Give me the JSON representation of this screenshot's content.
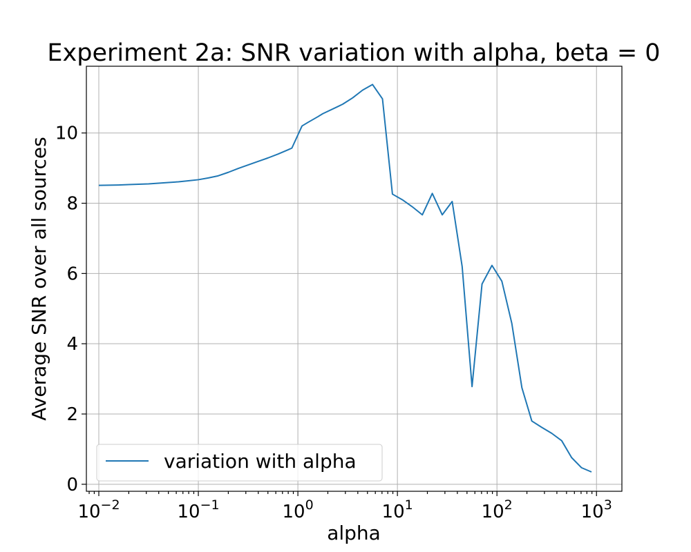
{
  "chart_data": {
    "type": "line",
    "title": "Experiment 2a: SNR variation with alpha, beta = 0",
    "xlabel": "alpha",
    "ylabel": "Average SNR over all sources",
    "xscale": "log",
    "xlim": [
      0.0075,
      1800
    ],
    "ylim": [
      -0.2,
      11.9
    ],
    "x_ticks": [
      0.01,
      0.1,
      1,
      10,
      100,
      1000
    ],
    "x_tick_labels": [
      {
        "base": "10",
        "exp": "−2"
      },
      {
        "base": "10",
        "exp": "−1"
      },
      {
        "base": "10",
        "exp": "0"
      },
      {
        "base": "10",
        "exp": "1"
      },
      {
        "base": "10",
        "exp": "2"
      },
      {
        "base": "10",
        "exp": "3"
      }
    ],
    "y_ticks": [
      0,
      2,
      4,
      6,
      8,
      10
    ],
    "y_tick_labels": [
      "0",
      "2",
      "4",
      "6",
      "8",
      "10"
    ],
    "grid": true,
    "legend_position": "lower-left",
    "series": [
      {
        "name": "variation with alpha",
        "color": "#1f77b4",
        "points": [
          [
            0.01,
            8.51
          ],
          [
            0.0126,
            8.515
          ],
          [
            0.0158,
            8.52
          ],
          [
            0.02,
            8.53
          ],
          [
            0.0251,
            8.54
          ],
          [
            0.0316,
            8.55
          ],
          [
            0.0398,
            8.57
          ],
          [
            0.0501,
            8.59
          ],
          [
            0.0631,
            8.61
          ],
          [
            0.0794,
            8.64
          ],
          [
            0.1,
            8.67
          ],
          [
            0.126,
            8.72
          ],
          [
            0.158,
            8.78
          ],
          [
            0.2,
            8.88
          ],
          [
            0.251,
            8.99
          ],
          [
            0.316,
            9.09
          ],
          [
            0.398,
            9.19
          ],
          [
            0.501,
            9.29
          ],
          [
            0.631,
            9.4
          ],
          [
            0.794,
            9.52
          ],
          [
            0.87,
            9.57
          ],
          [
            1.1,
            10.2
          ],
          [
            1.26,
            10.3
          ],
          [
            1.58,
            10.46
          ],
          [
            1.78,
            10.55
          ],
          [
            2.51,
            10.75
          ],
          [
            2.82,
            10.82
          ],
          [
            3.55,
            11.0
          ],
          [
            4.47,
            11.22
          ],
          [
            5.62,
            11.38
          ],
          [
            7.08,
            10.97
          ],
          [
            8.91,
            8.26
          ],
          [
            11.2,
            8.1
          ],
          [
            14.1,
            7.9
          ],
          [
            17.8,
            7.67
          ],
          [
            22.4,
            8.28
          ],
          [
            28.2,
            7.67
          ],
          [
            35.5,
            8.05
          ],
          [
            44.7,
            6.2
          ],
          [
            56.2,
            2.78
          ],
          [
            70.8,
            5.7
          ],
          [
            89.1,
            6.23
          ],
          [
            112,
            5.78
          ],
          [
            141,
            4.58
          ],
          [
            178,
            2.75
          ],
          [
            224,
            1.8
          ],
          [
            282,
            1.62
          ],
          [
            355,
            1.45
          ],
          [
            447,
            1.24
          ],
          [
            562,
            0.76
          ],
          [
            708,
            0.47
          ],
          [
            891,
            0.35
          ]
        ]
      }
    ]
  }
}
